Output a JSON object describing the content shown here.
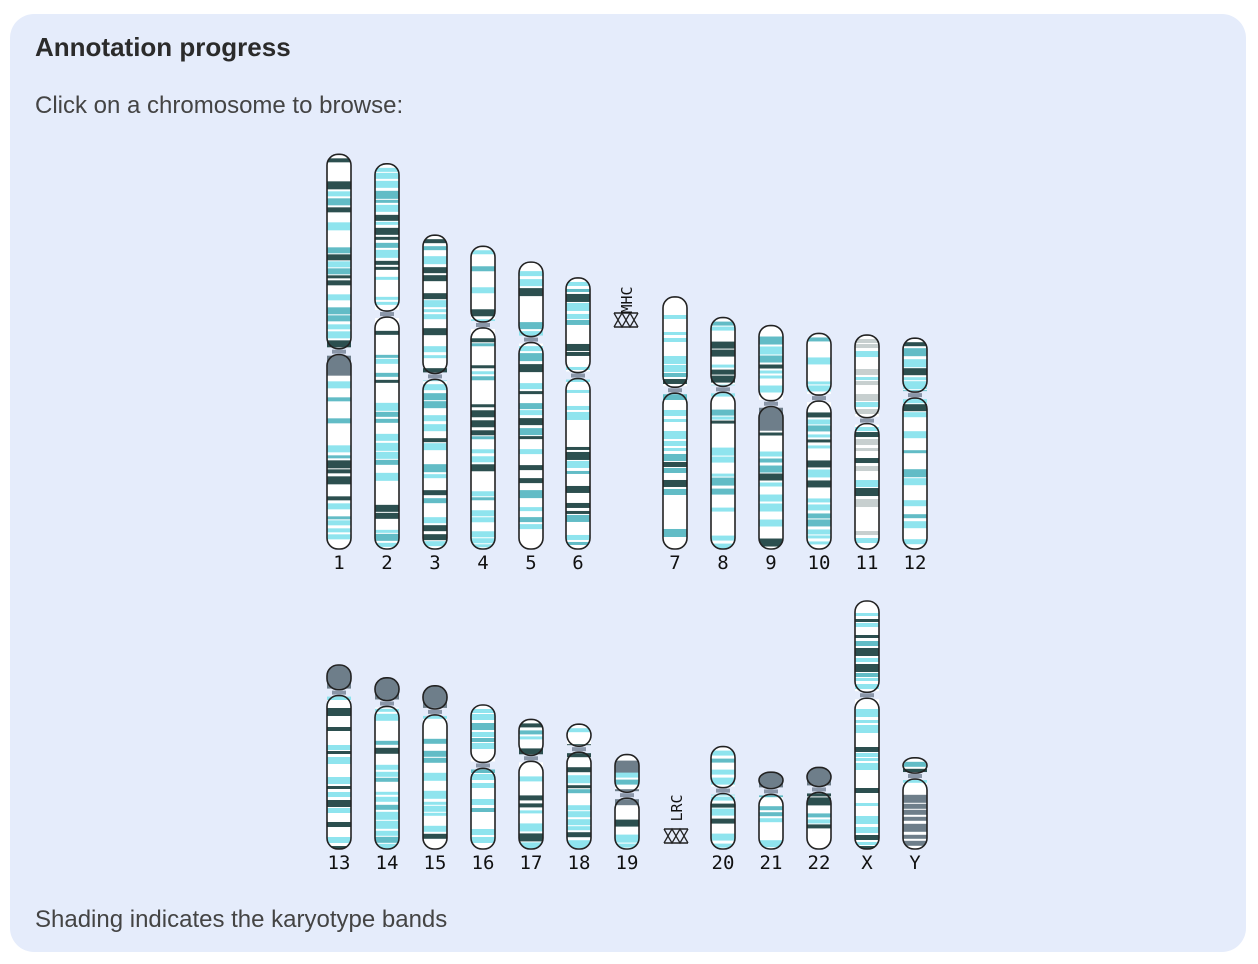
{
  "panel": {
    "title": "Annotation progress",
    "intro": "Click on a chromosome to browse:",
    "footnote": "Shading indicates the karyotype bands"
  },
  "colors": {
    "panel_bg": "#e5ecfb",
    "outline": "#222222",
    "band_white": "#ffffff",
    "band_light": "#8fe4ee",
    "band_mid": "#62bcc6",
    "band_dark": "#2c4f4f",
    "band_grey": "#6e7e8a",
    "band_silver": "#c7cfcf",
    "centromere": "#8a96a8"
  },
  "regions": [
    {
      "name": "MHC",
      "chromosome": "6"
    },
    {
      "name": "LRC",
      "chromosome": "19"
    }
  ],
  "rows": [
    {
      "chromosomes": [
        {
          "name": "1",
          "length": 249,
          "centromere": 0.5,
          "shade": "mixed"
        },
        {
          "name": "2",
          "length": 243,
          "centromere": 0.39,
          "shade": "mixed"
        },
        {
          "name": "3",
          "length": 198,
          "centromere": 0.45,
          "shade": "mixed"
        },
        {
          "name": "4",
          "length": 191,
          "centromere": 0.26,
          "shade": "mixed"
        },
        {
          "name": "5",
          "length": 181,
          "centromere": 0.27,
          "shade": "mixed"
        },
        {
          "name": "6",
          "length": 171,
          "centromere": 0.36,
          "shade": "mixed"
        },
        {
          "name": "7",
          "length": 159,
          "centromere": 0.37,
          "shade": "mixed"
        },
        {
          "name": "8",
          "length": 146,
          "centromere": 0.31,
          "shade": "mixed"
        },
        {
          "name": "9",
          "length": 141,
          "centromere": 0.35,
          "shade": "mixed"
        },
        {
          "name": "10",
          "length": 136,
          "centromere": 0.3,
          "shade": "mixed"
        },
        {
          "name": "11",
          "length": 135,
          "centromere": 0.4,
          "shade": "silver"
        },
        {
          "name": "12",
          "length": 133,
          "centromere": 0.27,
          "shade": "mixed"
        }
      ]
    },
    {
      "chromosomes": [
        {
          "name": "13",
          "length": 115,
          "centromere": 0.15,
          "shade": "acro"
        },
        {
          "name": "14",
          "length": 107,
          "centromere": 0.15,
          "shade": "acro"
        },
        {
          "name": "15",
          "length": 102,
          "centromere": 0.16,
          "shade": "acro"
        },
        {
          "name": "16",
          "length": 90,
          "centromere": 0.42,
          "shade": "mixed"
        },
        {
          "name": "17",
          "length": 81,
          "centromere": 0.3,
          "shade": "mixed"
        },
        {
          "name": "18",
          "length": 78,
          "centromere": 0.2,
          "shade": "mixed"
        },
        {
          "name": "19",
          "length": 59,
          "centromere": 0.43,
          "shade": "grey"
        },
        {
          "name": "20",
          "length": 64,
          "centromere": 0.43,
          "shade": "mixed"
        },
        {
          "name": "21",
          "length": 48,
          "centromere": 0.25,
          "shade": "acro"
        },
        {
          "name": "22",
          "length": 51,
          "centromere": 0.27,
          "shade": "acro"
        },
        {
          "name": "X",
          "length": 155,
          "centromere": 0.38,
          "shade": "mixed"
        },
        {
          "name": "Y",
          "length": 57,
          "centromere": 0.2,
          "shade": "y"
        }
      ]
    }
  ]
}
